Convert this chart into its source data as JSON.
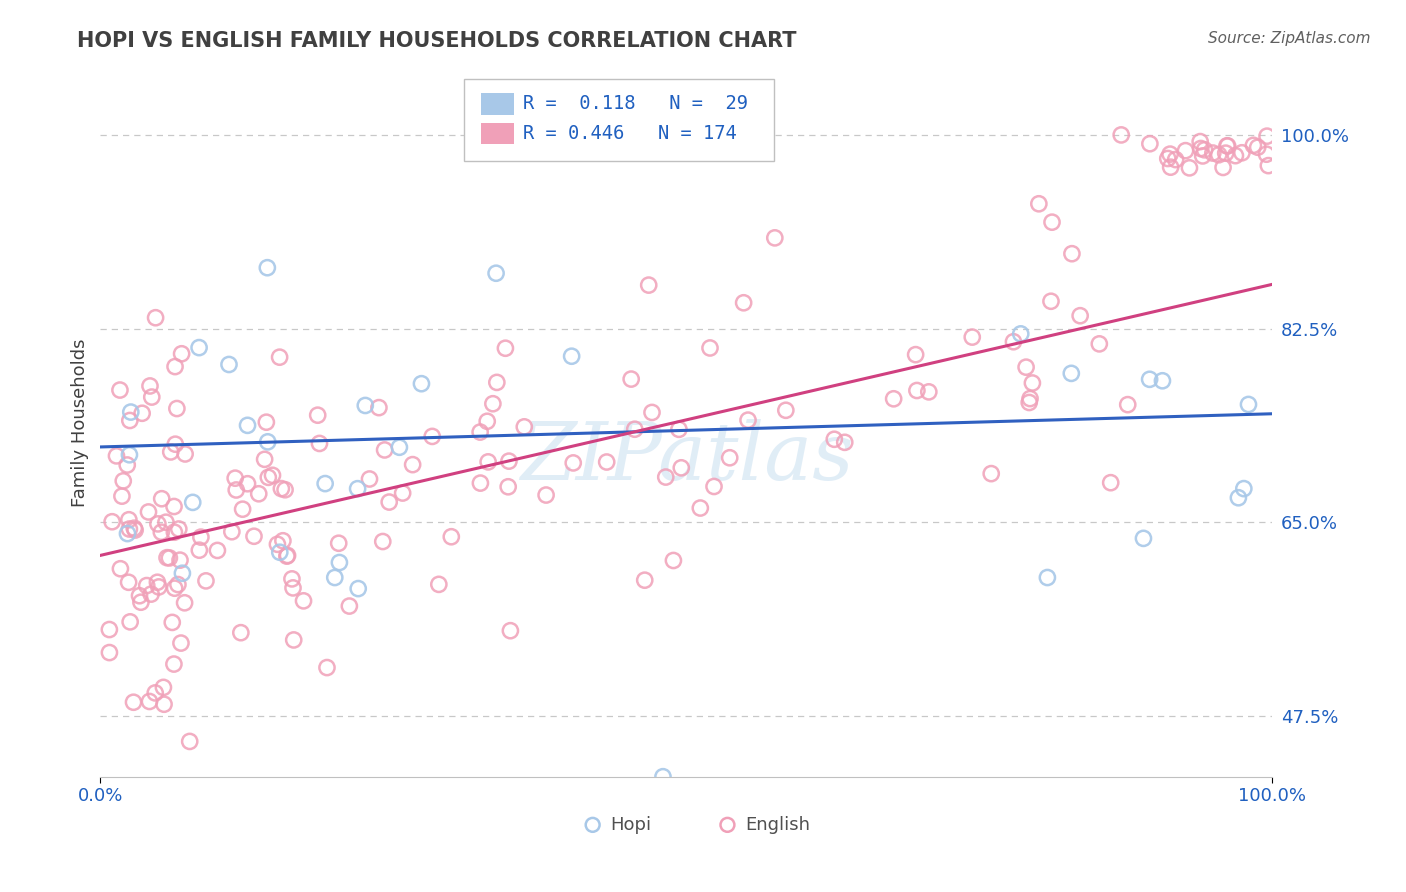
{
  "title": "HOPI VS ENGLISH FAMILY HOUSEHOLDS CORRELATION CHART",
  "source": "Source: ZipAtlas.com",
  "ylabel": "Family Households",
  "xlim": [
    0.0,
    1.0
  ],
  "ylim": [
    0.42,
    1.06
  ],
  "yticks": [
    0.475,
    0.65,
    0.825,
    1.0
  ],
  "ytick_labels": [
    "47.5%",
    "65.0%",
    "82.5%",
    "100.0%"
  ],
  "xtick_labels": [
    "0.0%",
    "100.0%"
  ],
  "hopi_color": "#a8c8e8",
  "english_color": "#f0a0b8",
  "hopi_line_color": "#3060c0",
  "english_line_color": "#d04080",
  "hopi_line_start": 0.718,
  "hopi_line_end": 0.748,
  "english_line_start": 0.62,
  "english_line_end": 0.865,
  "watermark_text": "ZIPatlas",
  "watermark_color": "#c8dff0",
  "background_color": "#ffffff",
  "grid_color": "#c8c8c8",
  "title_color": "#404040",
  "source_color": "#606060",
  "tick_color": "#2060c0",
  "ylabel_color": "#404040",
  "legend_label1": "R =  0.118   N =  29",
  "legend_label2": "R = 0.446   N = 174"
}
